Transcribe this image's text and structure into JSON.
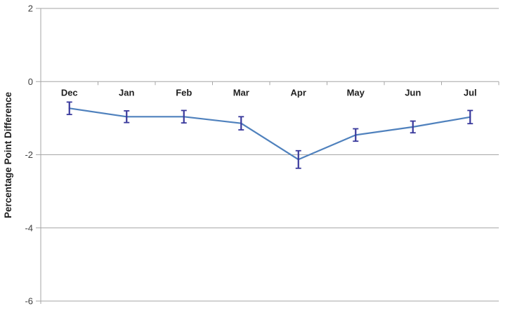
{
  "chart_data": {
    "type": "line",
    "title": "",
    "categories": [
      "Dec",
      "Jan",
      "Feb",
      "Mar",
      "Apr",
      "May",
      "Jun",
      "Jul"
    ],
    "series": [
      {
        "name": "Percentage Point Difference",
        "values": [
          -0.73,
          -0.96,
          -0.96,
          -1.14,
          -2.13,
          -1.46,
          -1.24,
          -0.97
        ],
        "error_bars": [
          0.17,
          0.16,
          0.17,
          0.18,
          0.24,
          0.17,
          0.16,
          0.18
        ],
        "line_color": "#4F81BD",
        "error_bar_color": "#39399C"
      }
    ],
    "xlabel": "",
    "ylabel": "Percentage Point Difference",
    "ylim": [
      -6,
      2
    ],
    "yticks": [
      2,
      0,
      -2,
      -4,
      -6
    ],
    "grid": "horizontal",
    "legend": "none",
    "markers": "none",
    "category_axis_position": "at zero, labels above line points / below zero gridline",
    "colors": {
      "gridline": "#A6A6A6",
      "axis_line": "#A6A6A6",
      "tick_text": "#404040",
      "category_text": "#1F1F1F",
      "background": "#FFFFFF"
    }
  }
}
